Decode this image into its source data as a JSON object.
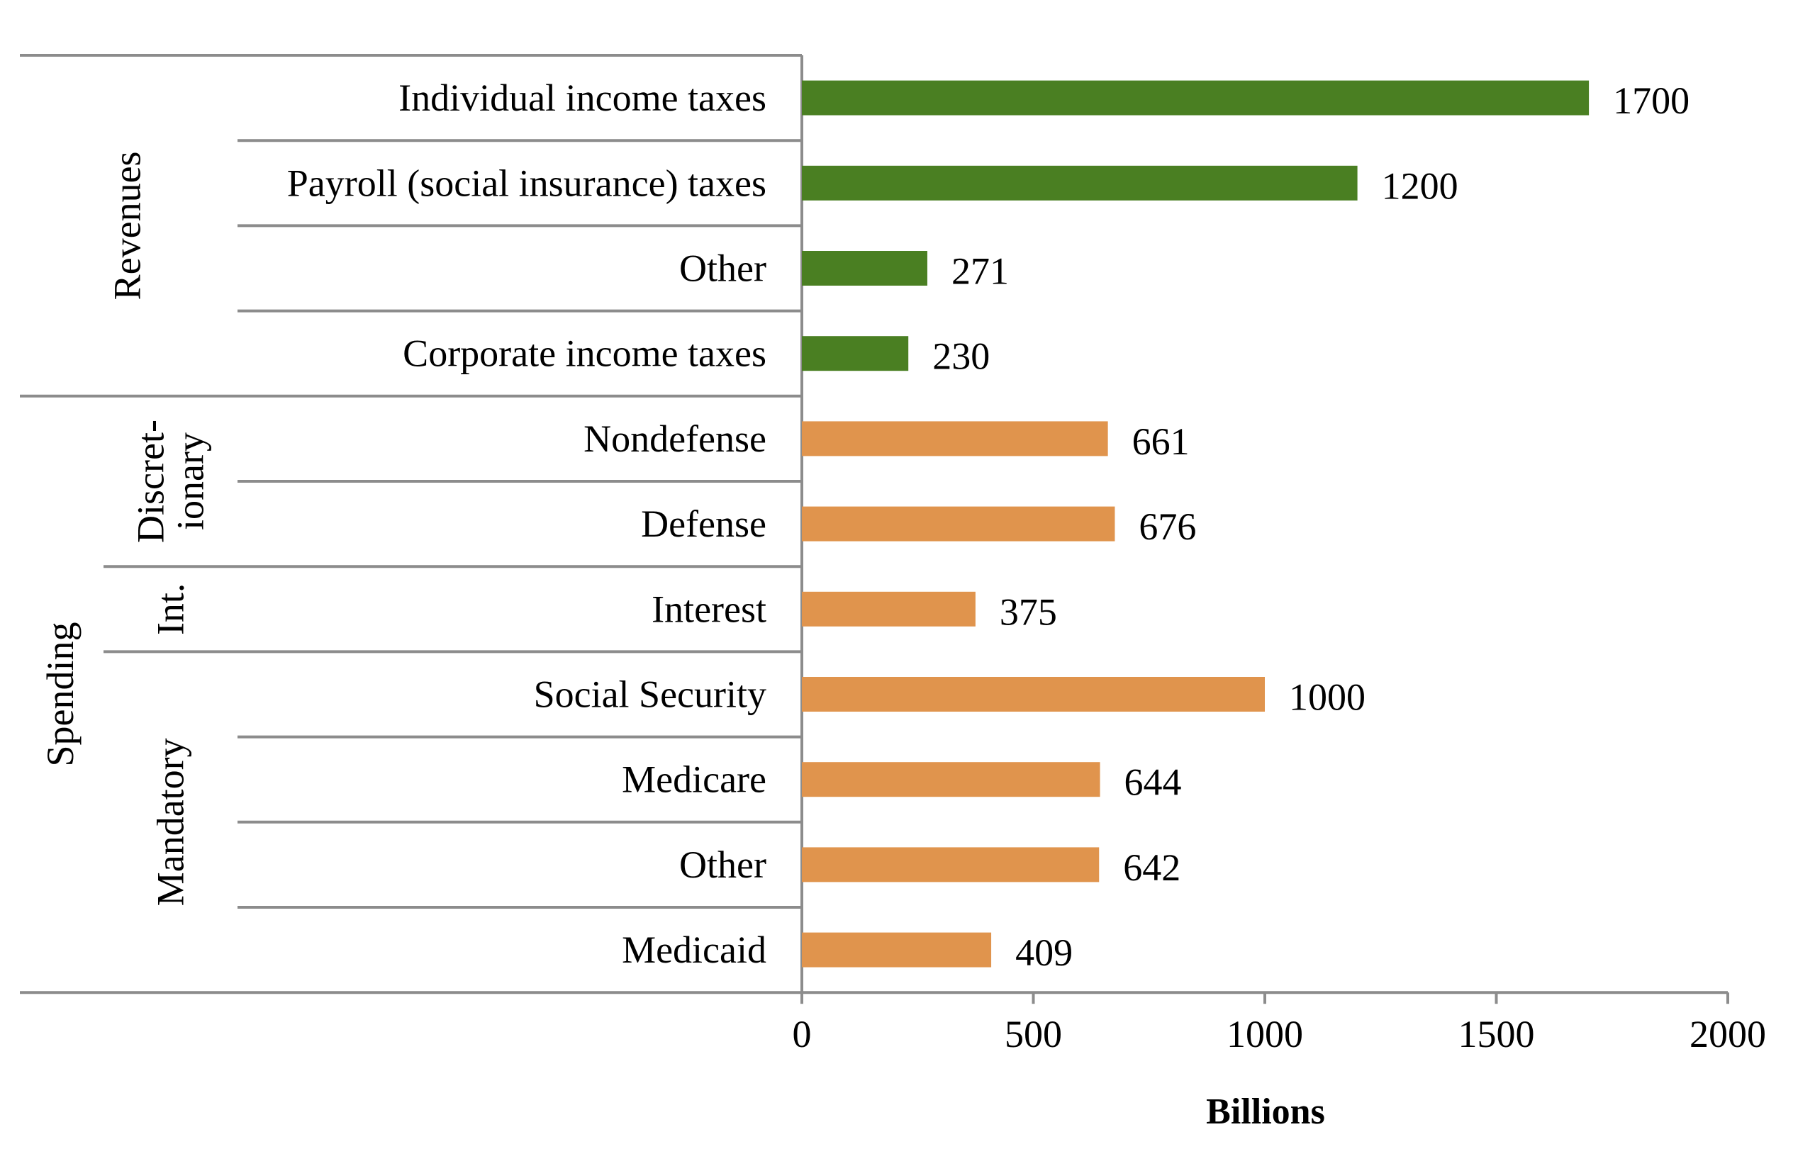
{
  "chart_data": {
    "type": "bar",
    "orientation": "horizontal",
    "xlabel": "Billions",
    "xlim": [
      0,
      2000
    ],
    "xticks": [
      0,
      500,
      1000,
      1500,
      2000
    ],
    "groups": [
      {
        "name": "Revenues",
        "color": "#4a7f22",
        "subgroups": [
          {
            "name": "",
            "items": [
              {
                "label": "Individual income taxes",
                "value": 1700
              },
              {
                "label": "Payroll (social insurance) taxes",
                "value": 1200
              },
              {
                "label": "Other",
                "value": 271
              },
              {
                "label": "Corporate income taxes",
                "value": 230
              }
            ]
          }
        ]
      },
      {
        "name": "Spending",
        "color": "#e0944d",
        "subgroups": [
          {
            "name": "Discret-\nionary",
            "items": [
              {
                "label": "Nondefense",
                "value": 661
              },
              {
                "label": "Defense",
                "value": 676
              }
            ]
          },
          {
            "name": "Int.",
            "items": [
              {
                "label": "Interest",
                "value": 375
              }
            ]
          },
          {
            "name": "Mandatory",
            "items": [
              {
                "label": "Social Security",
                "value": 1000
              },
              {
                "label": "Medicare",
                "value": 644
              },
              {
                "label": "Other",
                "value": 642
              },
              {
                "label": "Medicaid",
                "value": 409
              }
            ]
          }
        ]
      }
    ],
    "grid": false,
    "legend": "none"
  }
}
